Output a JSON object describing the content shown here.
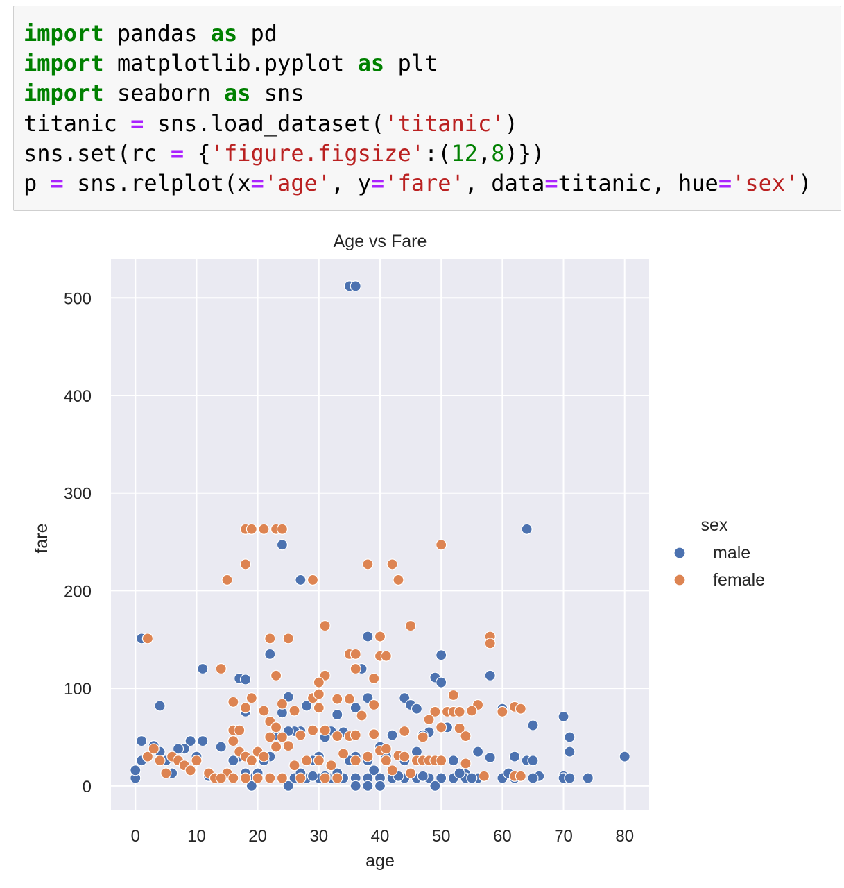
{
  "code": {
    "lines": [
      [
        {
          "t": "kw",
          "v": "import"
        },
        {
          "t": "",
          "v": " pandas "
        },
        {
          "t": "kw",
          "v": "as"
        },
        {
          "t": "",
          "v": " pd"
        }
      ],
      [
        {
          "t": "kw",
          "v": "import"
        },
        {
          "t": "",
          "v": " matplotlib.pyplot "
        },
        {
          "t": "kw",
          "v": "as"
        },
        {
          "t": "",
          "v": " plt"
        }
      ],
      [
        {
          "t": "kw",
          "v": "import"
        },
        {
          "t": "",
          "v": " seaborn "
        },
        {
          "t": "kw",
          "v": "as"
        },
        {
          "t": "",
          "v": " sns"
        }
      ],
      [
        {
          "t": "",
          "v": "titanic "
        },
        {
          "t": "op",
          "v": "="
        },
        {
          "t": "",
          "v": " sns.load_dataset("
        },
        {
          "t": "str",
          "v": "'titanic'"
        },
        {
          "t": "",
          "v": ")"
        }
      ],
      [
        {
          "t": "",
          "v": "sns.set(rc "
        },
        {
          "t": "op",
          "v": "="
        },
        {
          "t": "",
          "v": " {"
        },
        {
          "t": "str",
          "v": "'figure.figsize'"
        },
        {
          "t": "",
          "v": ":("
        },
        {
          "t": "num",
          "v": "12"
        },
        {
          "t": "",
          "v": ","
        },
        {
          "t": "num",
          "v": "8"
        },
        {
          "t": "",
          "v": ")})"
        }
      ],
      [
        {
          "t": "",
          "v": "p "
        },
        {
          "t": "op",
          "v": "="
        },
        {
          "t": "",
          "v": " sns.relplot(x"
        },
        {
          "t": "op",
          "v": "="
        },
        {
          "t": "str",
          "v": "'age'"
        },
        {
          "t": "",
          "v": ", y"
        },
        {
          "t": "op",
          "v": "="
        },
        {
          "t": "str",
          "v": "'fare'"
        },
        {
          "t": "",
          "v": ", data"
        },
        {
          "t": "op",
          "v": "="
        },
        {
          "t": "",
          "v": "titanic, hue"
        },
        {
          "t": "op",
          "v": "="
        },
        {
          "t": "str",
          "v": "'sex'"
        },
        {
          "t": "",
          "v": ")"
        }
      ]
    ]
  },
  "chart_data": {
    "type": "scatter",
    "title": "Age vs Fare",
    "xlabel": "age",
    "ylabel": "fare",
    "xlim": [
      -4,
      84
    ],
    "ylim": [
      -25,
      540
    ],
    "xticks": [
      0,
      10,
      20,
      30,
      40,
      50,
      60,
      70,
      80
    ],
    "yticks": [
      0,
      100,
      200,
      300,
      400,
      500
    ],
    "grid": true,
    "legend": {
      "title": "sex",
      "placement": "right",
      "entries": [
        "male",
        "female"
      ]
    },
    "colors": {
      "male": "#4c72b0",
      "female": "#dd8452",
      "background": "#eaeaf2",
      "grid": "#ffffff"
    },
    "series": [
      {
        "name": "male",
        "points": [
          [
            35,
            512
          ],
          [
            36,
            512
          ],
          [
            64,
            263
          ],
          [
            19,
            263
          ],
          [
            24,
            247
          ],
          [
            27,
            211
          ],
          [
            38,
            153
          ],
          [
            1,
            151
          ],
          [
            22,
            135
          ],
          [
            50,
            134
          ],
          [
            11,
            120
          ],
          [
            17,
            110
          ],
          [
            18,
            109
          ],
          [
            49,
            111
          ],
          [
            50,
            106
          ],
          [
            58,
            113
          ],
          [
            37,
            120
          ],
          [
            4,
            82
          ],
          [
            25,
            91
          ],
          [
            38,
            90
          ],
          [
            44,
            90
          ],
          [
            45,
            83
          ],
          [
            46,
            79
          ],
          [
            60,
            79
          ],
          [
            65,
            62
          ],
          [
            70,
            71
          ],
          [
            71,
            50
          ],
          [
            71,
            35
          ],
          [
            80,
            30
          ],
          [
            74,
            8
          ],
          [
            70,
            10
          ],
          [
            64,
            26
          ],
          [
            65,
            26
          ],
          [
            66,
            10
          ],
          [
            62,
            30
          ],
          [
            58,
            29
          ],
          [
            56,
            35
          ],
          [
            54,
            12
          ],
          [
            52,
            26
          ],
          [
            51,
            60
          ],
          [
            48,
            55
          ],
          [
            47,
            52
          ],
          [
            46,
            35
          ],
          [
            44,
            26
          ],
          [
            42,
            52
          ],
          [
            41,
            30
          ],
          [
            40,
            40
          ],
          [
            39,
            16
          ],
          [
            38,
            26
          ],
          [
            36,
            80
          ],
          [
            36,
            30
          ],
          [
            35,
            26
          ],
          [
            34,
            55
          ],
          [
            33,
            73
          ],
          [
            32,
            56
          ],
          [
            31,
            50
          ],
          [
            30,
            30
          ],
          [
            29,
            26
          ],
          [
            28,
            82
          ],
          [
            27,
            56
          ],
          [
            26,
            56
          ],
          [
            25,
            56
          ],
          [
            24,
            75
          ],
          [
            23,
            52
          ],
          [
            22,
            30
          ],
          [
            21,
            26
          ],
          [
            20,
            10
          ],
          [
            19,
            8
          ],
          [
            18,
            76
          ],
          [
            17,
            30
          ],
          [
            16,
            26
          ],
          [
            14,
            40
          ],
          [
            12,
            10
          ],
          [
            11,
            46
          ],
          [
            10,
            30
          ],
          [
            9,
            46
          ],
          [
            8,
            38
          ],
          [
            7,
            38
          ],
          [
            6,
            13
          ],
          [
            5,
            26
          ],
          [
            4,
            35
          ],
          [
            3,
            41
          ],
          [
            2,
            30
          ],
          [
            1,
            46
          ],
          [
            1,
            26
          ],
          [
            0,
            8
          ],
          [
            0,
            16
          ],
          [
            28,
            8
          ],
          [
            30,
            8
          ],
          [
            32,
            8
          ],
          [
            34,
            8
          ],
          [
            36,
            8
          ],
          [
            38,
            8
          ],
          [
            40,
            8
          ],
          [
            42,
            8
          ],
          [
            44,
            8
          ],
          [
            46,
            8
          ],
          [
            48,
            8
          ],
          [
            50,
            8
          ],
          [
            52,
            8
          ],
          [
            54,
            8
          ],
          [
            56,
            8
          ],
          [
            60,
            8
          ],
          [
            62,
            8
          ],
          [
            26,
            8
          ],
          [
            24,
            8
          ],
          [
            22,
            8
          ],
          [
            20,
            13
          ],
          [
            18,
            13
          ],
          [
            25,
            0
          ],
          [
            36,
            0
          ],
          [
            49,
            0
          ],
          [
            19,
            0
          ],
          [
            40,
            0
          ],
          [
            38,
            0
          ],
          [
            33,
            13
          ],
          [
            45,
            13
          ],
          [
            61,
            13
          ],
          [
            66,
            10
          ],
          [
            70,
            8
          ],
          [
            71,
            8
          ],
          [
            31,
            10
          ],
          [
            29,
            10
          ],
          [
            27,
            13
          ],
          [
            43,
            10
          ],
          [
            47,
            10
          ],
          [
            53,
            13
          ],
          [
            55,
            8
          ],
          [
            57,
            10
          ],
          [
            63,
            10
          ],
          [
            65,
            8
          ]
        ]
      },
      {
        "name": "female",
        "points": [
          [
            18,
            263
          ],
          [
            19,
            263
          ],
          [
            21,
            263
          ],
          [
            23,
            263
          ],
          [
            24,
            263
          ],
          [
            50,
            247
          ],
          [
            18,
            227
          ],
          [
            38,
            227
          ],
          [
            42,
            227
          ],
          [
            15,
            211
          ],
          [
            29,
            211
          ],
          [
            43,
            211
          ],
          [
            2,
            151
          ],
          [
            22,
            151
          ],
          [
            25,
            151
          ],
          [
            58,
            153
          ],
          [
            58,
            146
          ],
          [
            31,
            164
          ],
          [
            45,
            164
          ],
          [
            35,
            135
          ],
          [
            36,
            135
          ],
          [
            40,
            153
          ],
          [
            40,
            133
          ],
          [
            41,
            133
          ],
          [
            14,
            120
          ],
          [
            36,
            120
          ],
          [
            23,
            113
          ],
          [
            31,
            113
          ],
          [
            30,
            106
          ],
          [
            39,
            110
          ],
          [
            16,
            86
          ],
          [
            19,
            90
          ],
          [
            29,
            90
          ],
          [
            30,
            94
          ],
          [
            33,
            89
          ],
          [
            35,
            89
          ],
          [
            39,
            83
          ],
          [
            52,
            93
          ],
          [
            56,
            83
          ],
          [
            62,
            81
          ],
          [
            63,
            79
          ],
          [
            49,
            76
          ],
          [
            51,
            76
          ],
          [
            52,
            76
          ],
          [
            53,
            76
          ],
          [
            55,
            77
          ],
          [
            60,
            76
          ],
          [
            18,
            80
          ],
          [
            21,
            77
          ],
          [
            24,
            84
          ],
          [
            26,
            77
          ],
          [
            30,
            80
          ],
          [
            16,
            57
          ],
          [
            17,
            57
          ],
          [
            22,
            66
          ],
          [
            23,
            60
          ],
          [
            24,
            50
          ],
          [
            25,
            41
          ],
          [
            27,
            52
          ],
          [
            29,
            57
          ],
          [
            31,
            57
          ],
          [
            33,
            51
          ],
          [
            35,
            51
          ],
          [
            36,
            52
          ],
          [
            37,
            72
          ],
          [
            39,
            53
          ],
          [
            40,
            36
          ],
          [
            41,
            38
          ],
          [
            43,
            31
          ],
          [
            44,
            56
          ],
          [
            47,
            50
          ],
          [
            48,
            68
          ],
          [
            50,
            60
          ],
          [
            53,
            59
          ],
          [
            54,
            51
          ],
          [
            2,
            30
          ],
          [
            3,
            38
          ],
          [
            4,
            26
          ],
          [
            5,
            13
          ],
          [
            6,
            30
          ],
          [
            7,
            26
          ],
          [
            8,
            21
          ],
          [
            9,
            16
          ],
          [
            10,
            26
          ],
          [
            12,
            13
          ],
          [
            13,
            8
          ],
          [
            15,
            13
          ],
          [
            16,
            46
          ],
          [
            17,
            35
          ],
          [
            18,
            30
          ],
          [
            19,
            26
          ],
          [
            20,
            35
          ],
          [
            21,
            30
          ],
          [
            22,
            50
          ],
          [
            23,
            40
          ],
          [
            26,
            21
          ],
          [
            28,
            26
          ],
          [
            30,
            26
          ],
          [
            32,
            21
          ],
          [
            34,
            33
          ],
          [
            36,
            26
          ],
          [
            38,
            30
          ],
          [
            41,
            26
          ],
          [
            42,
            16
          ],
          [
            44,
            30
          ],
          [
            45,
            13
          ],
          [
            46,
            26
          ],
          [
            47,
            26
          ],
          [
            48,
            26
          ],
          [
            49,
            26
          ],
          [
            50,
            26
          ],
          [
            54,
            23
          ],
          [
            57,
            10
          ],
          [
            62,
            10
          ],
          [
            63,
            10
          ],
          [
            14,
            8
          ],
          [
            16,
            8
          ],
          [
            18,
            8
          ],
          [
            20,
            8
          ],
          [
            22,
            8
          ],
          [
            24,
            8
          ],
          [
            27,
            8
          ],
          [
            31,
            8
          ],
          [
            33,
            8
          ]
        ]
      }
    ]
  }
}
